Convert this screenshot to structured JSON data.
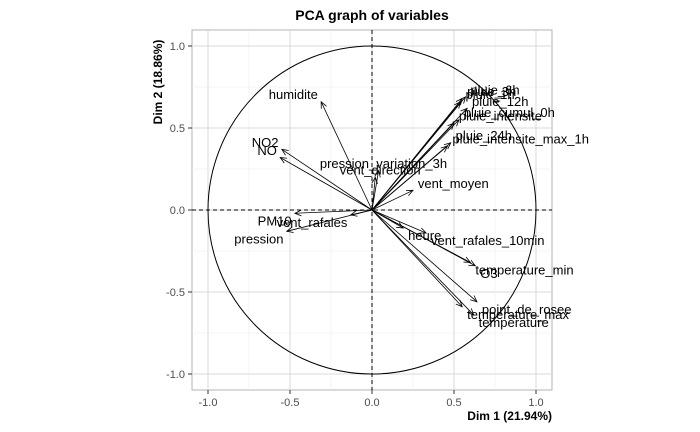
{
  "chart_data": {
    "type": "scatter",
    "subtype": "pca-correlation-circle",
    "title": "PCA graph of variables",
    "xlabel": "Dim 1 (21.94%)",
    "ylabel": "Dim 2 (18.86%)",
    "xlim": [
      -1.0,
      1.0
    ],
    "ylim": [
      -1.0,
      1.0
    ],
    "x_ticks": [
      "-1.0",
      "-0.5",
      "0.0",
      "0.5",
      "1.0"
    ],
    "y_ticks": [
      "-1.0",
      "-0.5",
      "0.0",
      "0.5",
      "1.0"
    ],
    "grid": true,
    "unit_circle": true,
    "variables": [
      {
        "name": "pluie_3h",
        "x": 0.55,
        "y": 0.68
      },
      {
        "name": "pluie_6h",
        "x": 0.57,
        "y": 0.69
      },
      {
        "name": "pluie_1h",
        "x": 0.54,
        "y": 0.66
      },
      {
        "name": "pluie_12h",
        "x": 0.58,
        "y": 0.62
      },
      {
        "name": "pluie_intensite",
        "x": 0.5,
        "y": 0.53
      },
      {
        "name": "pluie_cumul_0h",
        "x": 0.53,
        "y": 0.55
      },
      {
        "name": "pluie_24h",
        "x": 0.48,
        "y": 0.41
      },
      {
        "name": "pluie_intensite_max_1h",
        "x": 0.46,
        "y": 0.39
      },
      {
        "name": "humidite",
        "x": -0.31,
        "y": 0.66
      },
      {
        "name": "NO2",
        "x": -0.55,
        "y": 0.37
      },
      {
        "name": "NO",
        "x": -0.56,
        "y": 0.32
      },
      {
        "name": "pression_variation_3h",
        "x": 0.04,
        "y": 0.24
      },
      {
        "name": "vent_direction",
        "x": 0.02,
        "y": 0.2
      },
      {
        "name": "PM10",
        "x": -0.47,
        "y": -0.02
      },
      {
        "name": "pression",
        "x": -0.52,
        "y": -0.13
      },
      {
        "name": "vent_rafales",
        "x": -0.13,
        "y": -0.03
      },
      {
        "name": "vent_moyen",
        "x": 0.25,
        "y": 0.12
      },
      {
        "name": "heure",
        "x": 0.19,
        "y": -0.11
      },
      {
        "name": "vent_rafales_10min",
        "x": 0.33,
        "y": -0.14
      },
      {
        "name": "O3",
        "x": 0.63,
        "y": -0.34
      },
      {
        "name": "temperature_min",
        "x": 0.6,
        "y": -0.32
      },
      {
        "name": "point_de_rosee",
        "x": 0.64,
        "y": -0.56
      },
      {
        "name": "temperature_max",
        "x": 0.55,
        "y": -0.59
      },
      {
        "name": "temperature",
        "x": 0.62,
        "y": -0.64
      }
    ]
  }
}
